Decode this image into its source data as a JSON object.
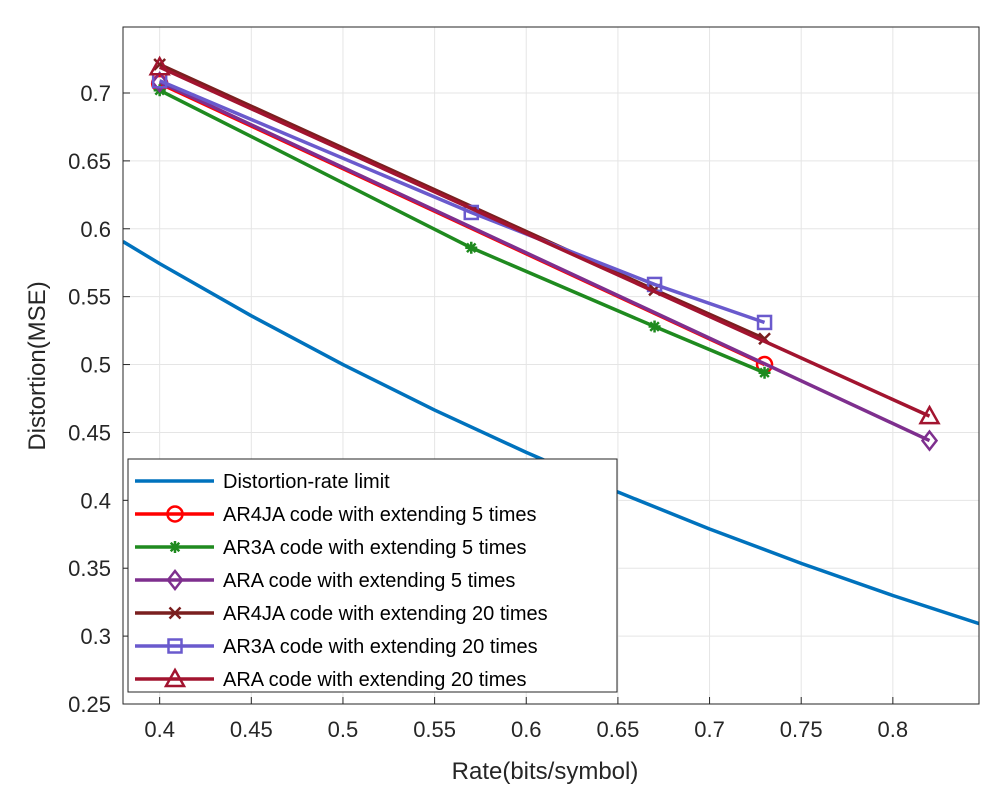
{
  "chart_data": {
    "type": "line",
    "title": "",
    "xlabel": "Rate(bits/symbol)",
    "ylabel": "Distortion(MSE)",
    "xlim": [
      0.38,
      0.847
    ],
    "ylim": [
      0.25,
      0.7486
    ],
    "xticks": [
      0.4,
      0.45,
      0.5,
      0.55,
      0.6,
      0.65,
      0.7,
      0.75,
      0.8
    ],
    "yticks": [
      0.25,
      0.3,
      0.35,
      0.4,
      0.45,
      0.5,
      0.55,
      0.6,
      0.65,
      0.7
    ],
    "grid": true,
    "legend_position": "bottom-left",
    "series": [
      {
        "name": "Distortion-rate limit",
        "color": "#0072bd",
        "marker": "none",
        "x": [
          0.38,
          0.4,
          0.45,
          0.5,
          0.55,
          0.6,
          0.65,
          0.7,
          0.75,
          0.8,
          0.847
        ],
        "y": [
          0.5906,
          0.5743,
          0.5359,
          0.5,
          0.4665,
          0.4353,
          0.4061,
          0.3789,
          0.3536,
          0.3299,
          0.3092
        ]
      },
      {
        "name": "AR4JA code with extending 5 times",
        "color": "#ff0000",
        "marker": "circle",
        "x": [
          0.4,
          0.73
        ],
        "y": [
          0.707,
          0.5
        ]
      },
      {
        "name": "AR3A code with extending 5 times",
        "color": "#1f8a1f",
        "marker": "asterisk",
        "x": [
          0.4,
          0.57,
          0.67,
          0.73
        ],
        "y": [
          0.702,
          0.586,
          0.528,
          0.494
        ]
      },
      {
        "name": "ARA code with extending 5 times",
        "color": "#7e2f8e",
        "marker": "diamond",
        "x": [
          0.4,
          0.82
        ],
        "y": [
          0.708,
          0.444
        ]
      },
      {
        "name": "AR4JA code with extending 20 times",
        "color": "#7a1f1f",
        "marker": "x",
        "x": [
          0.4,
          0.67,
          0.73
        ],
        "y": [
          0.721,
          0.555,
          0.519
        ]
      },
      {
        "name": "AR3A code with extending 20 times",
        "color": "#6a5acd",
        "marker": "square",
        "x": [
          0.4,
          0.57,
          0.67,
          0.73
        ],
        "y": [
          0.709,
          0.612,
          0.559,
          0.531
        ]
      },
      {
        "name": "ARA code with extending 20 times",
        "color": "#a2142f",
        "marker": "triangle",
        "x": [
          0.4,
          0.82
        ],
        "y": [
          0.719,
          0.462
        ]
      }
    ]
  }
}
